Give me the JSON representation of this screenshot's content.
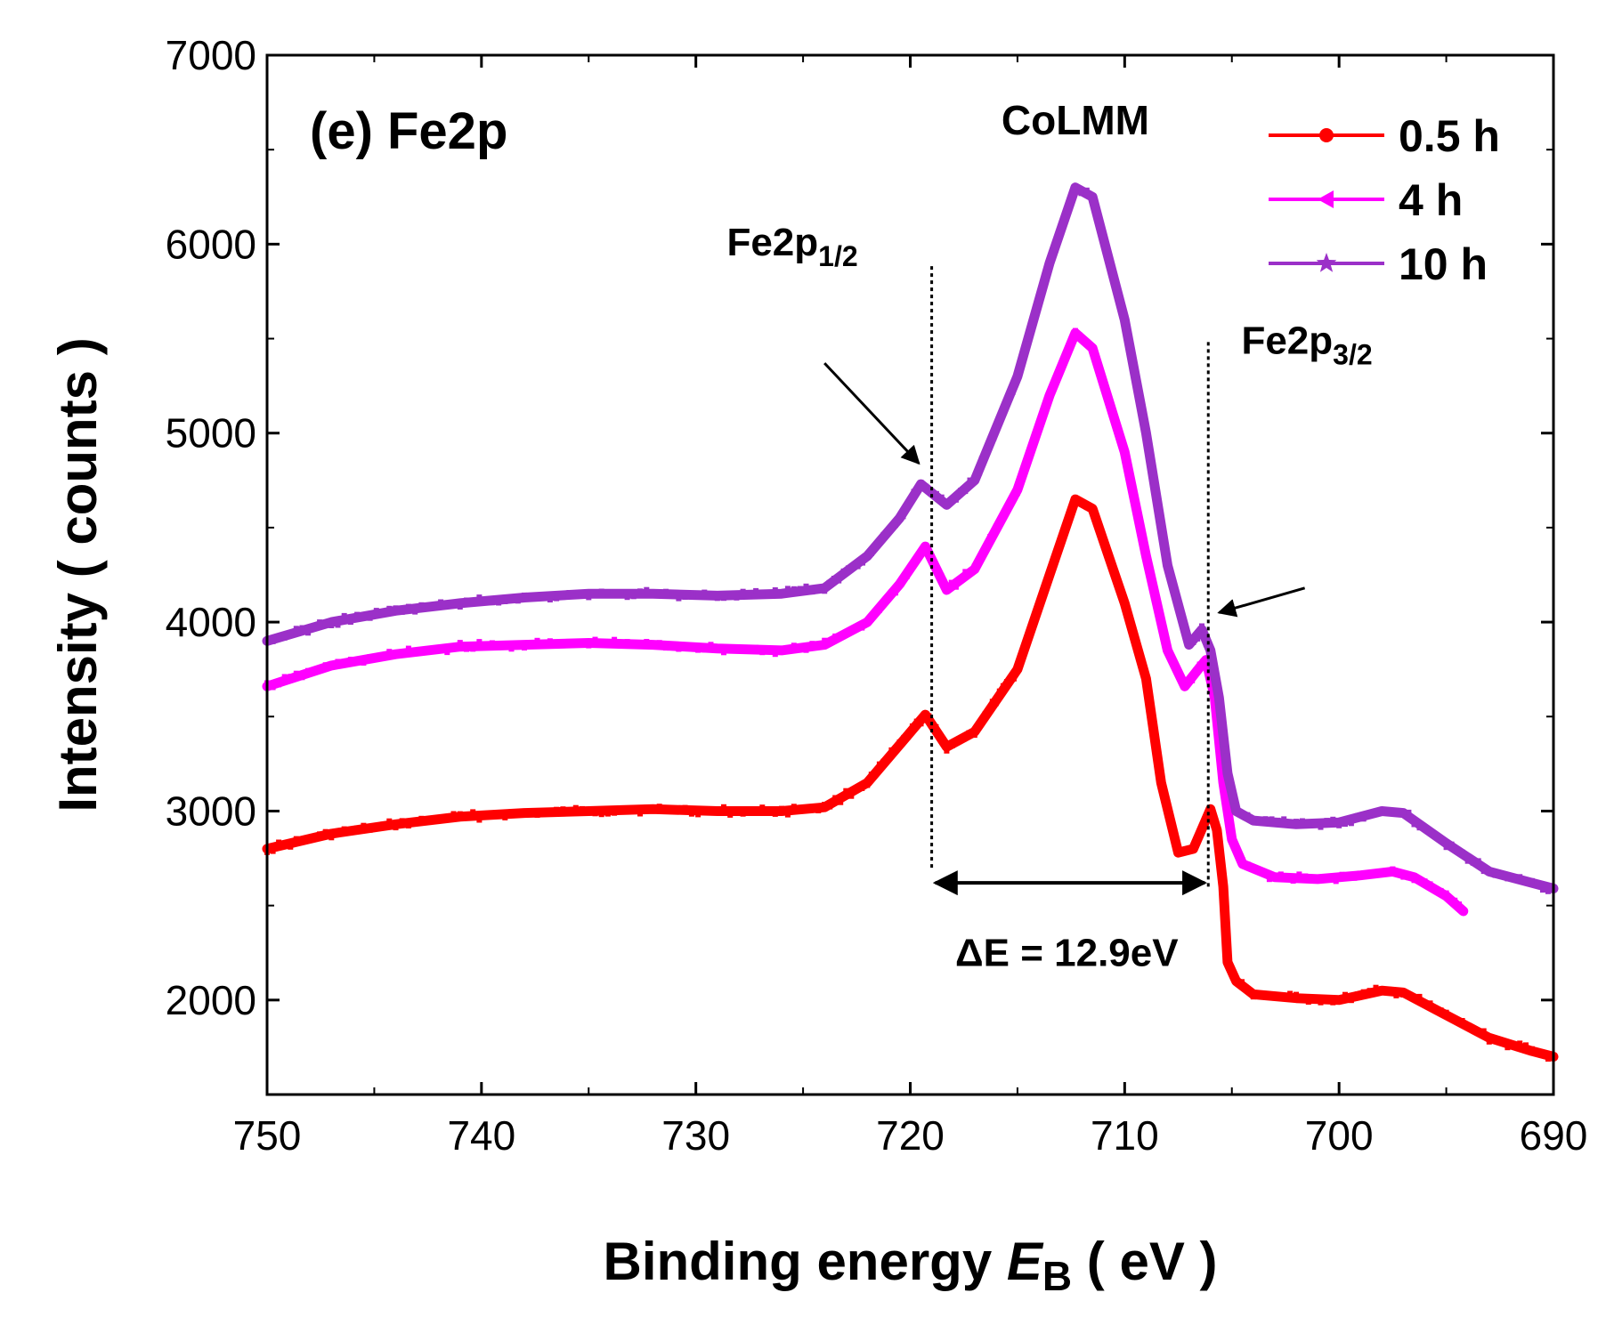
{
  "chart_data": {
    "type": "scatter",
    "title": "(e) Fe2p",
    "xlabel_prefix": "Binding energy ",
    "xlabel_var": "E",
    "xlabel_sub": "B",
    "xlabel_suffix": " ( eV )",
    "ylabel": "Intensity ( counts )",
    "xlim": [
      750,
      690
    ],
    "ylim": [
      1500,
      7000
    ],
    "xticks": [
      750,
      740,
      730,
      720,
      710,
      700,
      690
    ],
    "yticks": [
      2000,
      3000,
      4000,
      5000,
      6000,
      7000
    ],
    "legend_position": "top-right",
    "series": [
      {
        "name": "0.5 h",
        "color": "#ff0000",
        "marker": "circle",
        "points": [
          [
            750,
            2800
          ],
          [
            747,
            2880
          ],
          [
            744,
            2930
          ],
          [
            741,
            2970
          ],
          [
            738,
            2990
          ],
          [
            735,
            3000
          ],
          [
            732,
            3010
          ],
          [
            729,
            3000
          ],
          [
            726,
            3000
          ],
          [
            724,
            3020
          ],
          [
            722,
            3150
          ],
          [
            720.5,
            3350
          ],
          [
            719.3,
            3510
          ],
          [
            718.3,
            3340
          ],
          [
            717,
            3420
          ],
          [
            715,
            3750
          ],
          [
            713.5,
            4250
          ],
          [
            712.3,
            4650
          ],
          [
            711.5,
            4600
          ],
          [
            710,
            4100
          ],
          [
            709,
            3700
          ],
          [
            708.3,
            3150
          ],
          [
            707.5,
            2780
          ],
          [
            706.8,
            2800
          ],
          [
            706,
            3010
          ],
          [
            705.7,
            2900
          ],
          [
            705.4,
            2600
          ],
          [
            705.2,
            2200
          ],
          [
            704.8,
            2100
          ],
          [
            704,
            2030
          ],
          [
            702,
            2010
          ],
          [
            700,
            2000
          ],
          [
            698,
            2050
          ],
          [
            697,
            2040
          ],
          [
            695,
            1920
          ],
          [
            693,
            1800
          ],
          [
            691,
            1730
          ],
          [
            690,
            1700
          ]
        ]
      },
      {
        "name": "4 h",
        "color": "#ff00ff",
        "marker": "triangle-left",
        "points": [
          [
            750,
            3660
          ],
          [
            747,
            3770
          ],
          [
            744,
            3830
          ],
          [
            741,
            3870
          ],
          [
            738,
            3880
          ],
          [
            735,
            3890
          ],
          [
            732,
            3880
          ],
          [
            729,
            3860
          ],
          [
            726,
            3850
          ],
          [
            724,
            3880
          ],
          [
            722,
            4000
          ],
          [
            720.5,
            4200
          ],
          [
            719.3,
            4400
          ],
          [
            718.3,
            4170
          ],
          [
            717,
            4280
          ],
          [
            715,
            4700
          ],
          [
            713.5,
            5200
          ],
          [
            712.3,
            5530
          ],
          [
            711.5,
            5450
          ],
          [
            710,
            4900
          ],
          [
            709,
            4350
          ],
          [
            708,
            3850
          ],
          [
            707.2,
            3660
          ],
          [
            706.5,
            3760
          ],
          [
            706.2,
            3800
          ],
          [
            705.8,
            3600
          ],
          [
            705.4,
            3150
          ],
          [
            705,
            2850
          ],
          [
            704.5,
            2720
          ],
          [
            703,
            2650
          ],
          [
            701,
            2640
          ],
          [
            699,
            2660
          ],
          [
            697.5,
            2680
          ],
          [
            696.5,
            2650
          ],
          [
            695,
            2550
          ],
          [
            694.2,
            2470
          ]
        ]
      },
      {
        "name": "10 h",
        "color": "#9b30c8",
        "marker": "star",
        "points": [
          [
            750,
            3900
          ],
          [
            747,
            4000
          ],
          [
            744,
            4060
          ],
          [
            741,
            4100
          ],
          [
            738,
            4130
          ],
          [
            735,
            4150
          ],
          [
            732,
            4150
          ],
          [
            729,
            4140
          ],
          [
            726,
            4150
          ],
          [
            724,
            4180
          ],
          [
            722,
            4350
          ],
          [
            720.5,
            4550
          ],
          [
            719.5,
            4730
          ],
          [
            718.3,
            4620
          ],
          [
            717,
            4750
          ],
          [
            715,
            5300
          ],
          [
            713.5,
            5900
          ],
          [
            712.3,
            6300
          ],
          [
            711.5,
            6250
          ],
          [
            710,
            5600
          ],
          [
            709,
            5000
          ],
          [
            708,
            4300
          ],
          [
            707,
            3880
          ],
          [
            706.4,
            3960
          ],
          [
            706,
            3850
          ],
          [
            705.6,
            3600
          ],
          [
            705.2,
            3200
          ],
          [
            704.8,
            3000
          ],
          [
            704,
            2950
          ],
          [
            702,
            2930
          ],
          [
            700,
            2940
          ],
          [
            698,
            3000
          ],
          [
            697,
            2990
          ],
          [
            695,
            2830
          ],
          [
            693,
            2680
          ],
          [
            691,
            2620
          ],
          [
            690,
            2590
          ]
        ]
      }
    ],
    "annotations": [
      {
        "text": "CoLMM",
        "x": 712.3,
        "y": 6580
      },
      {
        "text": "Fe2p",
        "sub": "1/2",
        "x": 725.5,
        "y": 5940
      },
      {
        "text": "Fe2p",
        "sub": "3/2",
        "x": 701.5,
        "y": 5420
      },
      {
        "text": "ΔE = 12.9eV",
        "x": 712.7,
        "y": 2180
      }
    ],
    "vlines": [
      {
        "x": 719.0,
        "y0": 2700,
        "y1": 5900
      },
      {
        "x": 706.1,
        "y0": 2600,
        "y1": 5500
      }
    ],
    "arrows": [
      {
        "from": [
          724,
          5370
        ],
        "to": [
          719.6,
          4840
        ]
      },
      {
        "from": [
          701.6,
          4180
        ],
        "to": [
          705.6,
          4050
        ]
      }
    ],
    "double_arrow": {
      "x0": 719.0,
      "x1": 706.1,
      "y": 2620
    }
  }
}
